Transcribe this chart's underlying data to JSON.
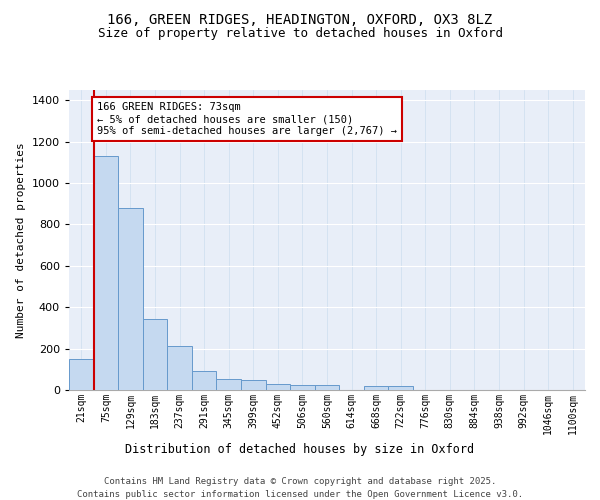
{
  "title_line1": "166, GREEN RIDGES, HEADINGTON, OXFORD, OX3 8LZ",
  "title_line2": "Size of property relative to detached houses in Oxford",
  "xlabel": "Distribution of detached houses by size in Oxford",
  "ylabel": "Number of detached properties",
  "bar_color": "#c5d9f0",
  "bar_edge_color": "#6699cc",
  "background_color": "#e8eef8",
  "annotation_box_color": "#cc0000",
  "annotation_text": "166 GREEN RIDGES: 73sqm\n← 5% of detached houses are smaller (150)\n95% of semi-detached houses are larger (2,767) →",
  "redline_x": 1,
  "categories": [
    "21sqm",
    "75sqm",
    "129sqm",
    "183sqm",
    "237sqm",
    "291sqm",
    "345sqm",
    "399sqm",
    "452sqm",
    "506sqm",
    "560sqm",
    "614sqm",
    "668sqm",
    "722sqm",
    "776sqm",
    "830sqm",
    "884sqm",
    "938sqm",
    "992sqm",
    "1046sqm",
    "1100sqm"
  ],
  "values": [
    150,
    1130,
    880,
    345,
    215,
    90,
    55,
    48,
    30,
    25,
    25,
    0,
    20,
    18,
    0,
    0,
    0,
    0,
    0,
    0,
    0
  ],
  "ylim": [
    0,
    1450
  ],
  "yticks": [
    0,
    200,
    400,
    600,
    800,
    1000,
    1200,
    1400
  ],
  "footer_line1": "Contains HM Land Registry data © Crown copyright and database right 2025.",
  "footer_line2": "Contains public sector information licensed under the Open Government Licence v3.0."
}
